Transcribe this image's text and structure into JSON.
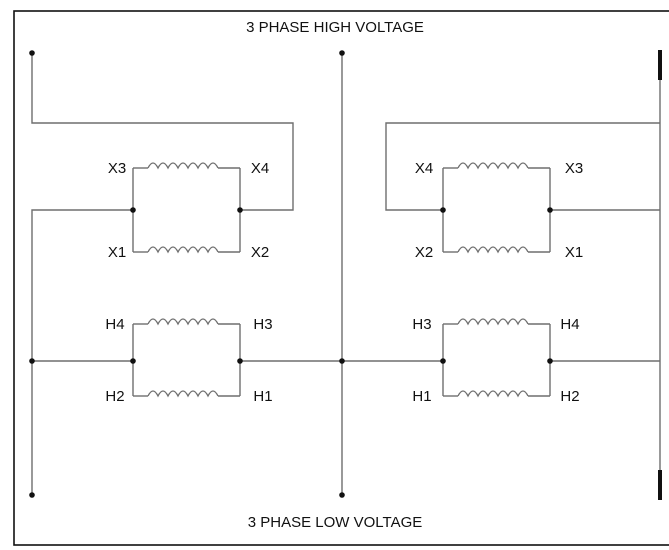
{
  "diagram": {
    "title_top": "3 PHASE HIGH VOLTAGE",
    "title_bottom": "3 PHASE LOW VOLTAGE",
    "left": {
      "x_top_left": "X3",
      "x_top_right": "X4",
      "x_bot_left": "X1",
      "x_bot_right": "X2",
      "h_top_left": "H4",
      "h_top_right": "H3",
      "h_bot_left": "H2",
      "h_bot_right": "H1"
    },
    "right": {
      "x_top_left": "X4",
      "x_top_right": "X3",
      "x_bot_left": "X2",
      "x_bot_right": "X1",
      "h_top_left": "H3",
      "h_top_right": "H4",
      "h_bot_left": "H1",
      "h_bot_right": "H2"
    },
    "colors": {
      "wire": "#6e6e6e",
      "dot": "#111111",
      "frame": "#111111"
    }
  }
}
